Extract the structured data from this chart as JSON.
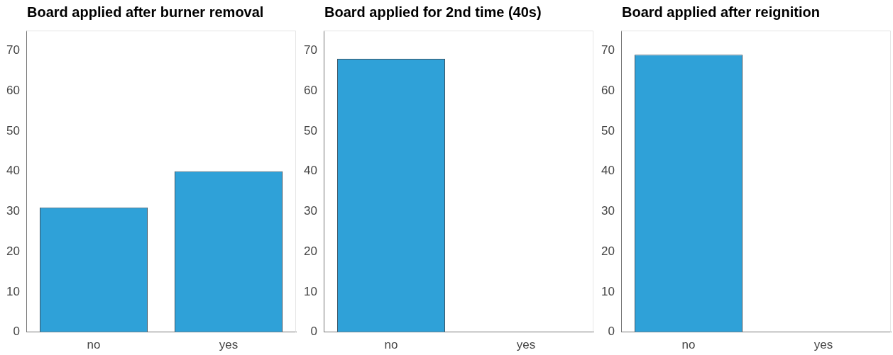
{
  "chart_data": [
    {
      "type": "bar",
      "title": "Board applied after burner removal",
      "categories": [
        "no",
        "yes"
      ],
      "values": [
        31,
        40
      ],
      "color": "#2fa1d8",
      "ylim": [
        0,
        75
      ],
      "yticks": [
        0,
        10,
        20,
        30,
        40,
        50,
        60,
        70
      ],
      "grid": false
    },
    {
      "type": "bar",
      "title": "Board applied for 2nd time (40s)",
      "categories": [
        "no",
        "yes"
      ],
      "values": [
        68,
        0
      ],
      "color": "#2fa1d8",
      "ylim": [
        0,
        75
      ],
      "yticks": [
        0,
        10,
        20,
        30,
        40,
        50,
        60,
        70
      ],
      "grid": false
    },
    {
      "type": "bar",
      "title": "Board applied after reignition",
      "categories": [
        "no",
        "yes"
      ],
      "values": [
        69,
        0
      ],
      "color": "#2fa1d8",
      "ylim": [
        0,
        75
      ],
      "yticks": [
        0,
        10,
        20,
        30,
        40,
        50,
        60,
        70
      ],
      "grid": false
    }
  ]
}
